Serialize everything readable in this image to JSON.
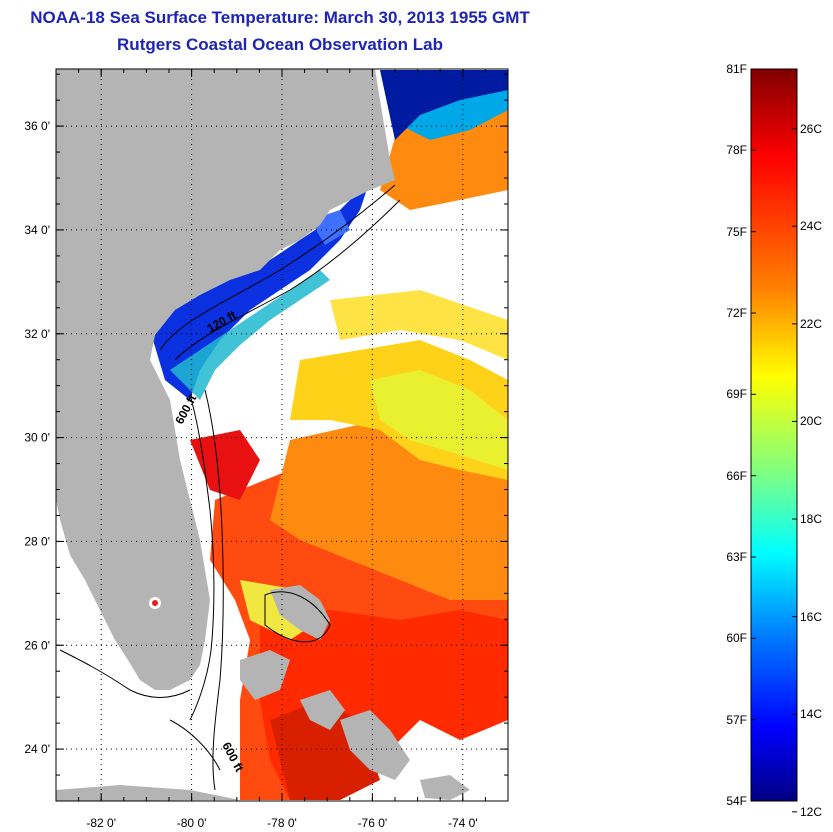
{
  "header": {
    "title": "NOAA-18 Sea Surface Temperature:  March 30, 2013 1955 GMT",
    "subtitle": "Rutgers Coastal Ocean Observation Lab"
  },
  "map": {
    "lat_labels": [
      "36 0'",
      "34 0'",
      "32 0'",
      "30 0'",
      "28 0'",
      "26 0'",
      "24 0'"
    ],
    "lat_values": [
      36,
      34,
      32,
      30,
      28,
      26,
      24
    ],
    "lon_labels": [
      "-82 0'",
      "-80 0'",
      "-78 0'",
      "-76 0'",
      "-74 0'"
    ],
    "lon_values": [
      -82,
      -80,
      -78,
      -76,
      -74
    ],
    "lat_range": [
      23.0,
      37.1
    ],
    "lon_range": [
      -83.0,
      -73.0
    ],
    "contour_labels": [
      "120 ft",
      "600 ft",
      "600 ft"
    ],
    "land_color": "#b4b4b4",
    "no_data_color": "#ffffff"
  },
  "colorbar": {
    "fahrenheit_labels": [
      "81F",
      "78F",
      "75F",
      "72F",
      "69F",
      "66F",
      "63F",
      "60F",
      "57F",
      "54F"
    ],
    "celsius_labels": [
      "26C",
      "24C",
      "22C",
      "20C",
      "18C",
      "16C",
      "14C",
      "12C"
    ],
    "colors": [
      "#800000",
      "#ff0000",
      "#ff8000",
      "#ffff00",
      "#80ff80",
      "#00ffff",
      "#0080ff",
      "#0000ff",
      "#000080"
    ]
  }
}
